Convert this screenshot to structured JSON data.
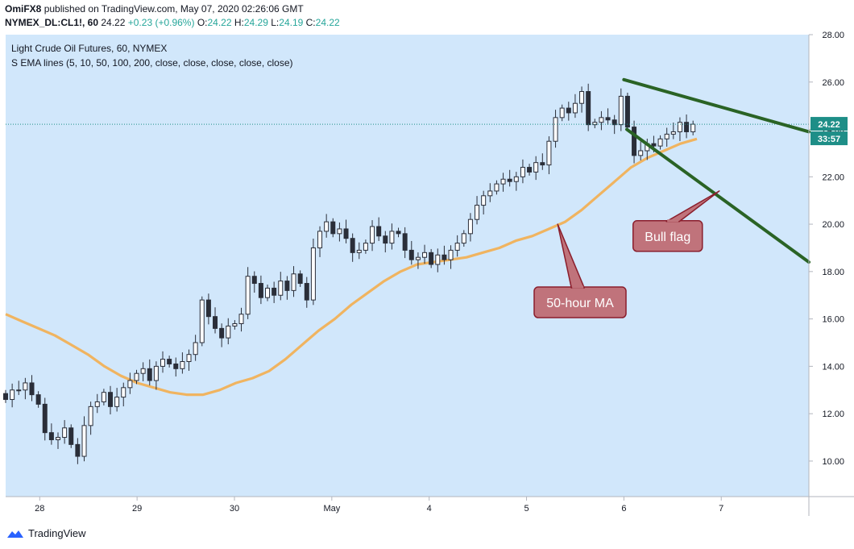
{
  "header": {
    "author": "OmiFX8",
    "published_text": "published on TradingView.com, May 07, 2020 02:26:06 GMT",
    "symbol": "NYMEX_DL:CL1!, 60",
    "last": "24.22",
    "change": "+0.23 (+0.96%)",
    "o_label": "O:",
    "o": "24.22",
    "h_label": "H:",
    "h": "24.29",
    "l_label": "L:",
    "l": "24.19",
    "c_label": "C:",
    "c": "24.22"
  },
  "legend": {
    "title": "Light Crude Oil Futures, 60, NYMEX",
    "indicator": "S EMA lines (5, 10, 50, 100, 200, close, close, close, close, close)"
  },
  "price_tag": "24.22",
  "timer_tag": "33:57",
  "footer": {
    "brand": "TradingView"
  },
  "colors": {
    "background": "#d1e7fb",
    "ma": "#f0b460",
    "trend": "#2a6325",
    "up": "#26a69a",
    "down": "#ef5350",
    "candle": "#2a2e39",
    "callout_fill": "#c0737b",
    "callout_border": "#8a1e2c",
    "price_tag": "#1e8e87"
  },
  "chart_data": {
    "type": "candlestick",
    "title": "Light Crude Oil Futures, 60, NYMEX",
    "ylim": [
      8.5,
      28
    ],
    "y_ticks": [
      "28.00",
      "26.00",
      "24.00",
      "22.00",
      "20.00",
      "18.00",
      "16.00",
      "14.00",
      "12.00",
      "10.00"
    ],
    "x_ticks": [
      {
        "label": "28",
        "x": 1.35
      },
      {
        "label": "29",
        "x": 2.35
      },
      {
        "label": "30",
        "x": 3.35
      },
      {
        "label": "May",
        "x": 4.35
      },
      {
        "label": "4",
        "x": 5.35
      },
      {
        "label": "5",
        "x": 6.35
      },
      {
        "label": "6",
        "x": 7.35
      },
      {
        "label": "7",
        "x": 8.35
      }
    ],
    "xlim": [
      1,
      9.25
    ],
    "candles_close": [
      12.6,
      13.0,
      13.0,
      13.3,
      12.8,
      12.4,
      11.2,
      10.9,
      11.0,
      11.4,
      10.7,
      10.2,
      11.5,
      12.3,
      12.5,
      12.9,
      12.3,
      12.7,
      13.1,
      13.4,
      13.7,
      13.9,
      13.4,
      14.0,
      14.3,
      14.1,
      13.9,
      14.2,
      14.5,
      15.0,
      16.8,
      16.1,
      15.6,
      15.2,
      15.7,
      15.8,
      16.2,
      17.8,
      17.5,
      16.9,
      17.3,
      17.0,
      17.6,
      17.2,
      17.9,
      17.5,
      16.8,
      19.0,
      19.7,
      20.1,
      19.6,
      19.8,
      19.4,
      18.8,
      18.9,
      19.2,
      19.9,
      19.5,
      19.2,
      19.7,
      19.6,
      18.9,
      18.5,
      18.6,
      18.8,
      18.3,
      18.7,
      18.5,
      18.9,
      19.2,
      19.6,
      20.2,
      20.8,
      21.2,
      21.4,
      21.7,
      21.9,
      21.8,
      22.0,
      22.4,
      22.2,
      22.6,
      22.5,
      23.5,
      24.5,
      24.9,
      24.7,
      25.1,
      25.6,
      24.2,
      24.3,
      24.5,
      24.4,
      24.2,
      25.4,
      24.1,
      22.9,
      23.1,
      23.4,
      23.3,
      23.6,
      23.8,
      23.9,
      24.3,
      23.9,
      24.22
    ],
    "ma_50hour": [
      16.2,
      15.9,
      15.6,
      15.3,
      14.9,
      14.5,
      14.0,
      13.6,
      13.3,
      13.1,
      12.9,
      12.8,
      12.8,
      13.0,
      13.3,
      13.5,
      13.8,
      14.3,
      14.9,
      15.5,
      16.0,
      16.6,
      17.1,
      17.6,
      18.0,
      18.3,
      18.4,
      18.5,
      18.6,
      18.8,
      19.0,
      19.3,
      19.5,
      19.8,
      20.1,
      20.6,
      21.2,
      21.8,
      22.4,
      22.8,
      23.1,
      23.4,
      23.6
    ],
    "trend_lines": [
      {
        "from": [
          7.35,
          26.1
        ],
        "to": [
          9.25,
          23.9
        ]
      },
      {
        "from": [
          7.38,
          24.0
        ],
        "to": [
          9.25,
          18.4
        ]
      }
    ],
    "annotations": [
      {
        "label": "50-hour MA",
        "box_center": [
          6.9,
          16.7
        ],
        "pointer": [
          6.67,
          20.0
        ]
      },
      {
        "label": "Bull flag",
        "box_center": [
          7.8,
          19.5
        ],
        "pointer": [
          8.33,
          21.4
        ]
      }
    ],
    "last_price": 24.22
  }
}
